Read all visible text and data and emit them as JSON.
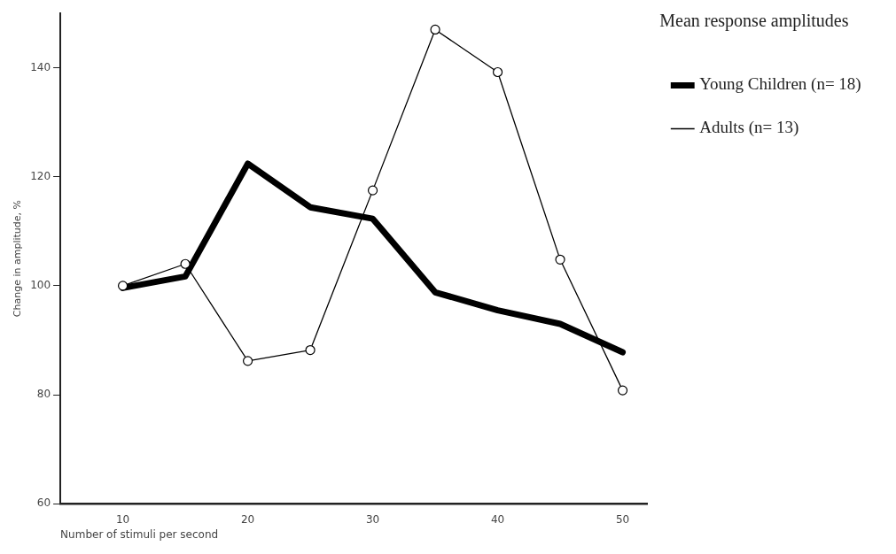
{
  "chart_data": {
    "type": "line",
    "xlabel": "Number of stimuli per second",
    "ylabel": "Change in amplitude, %",
    "legend_title": "Mean response amplitudes",
    "legend": "top right",
    "x": [
      10,
      15,
      20,
      25,
      30,
      35,
      40,
      45,
      50
    ],
    "series": [
      {
        "name": "Young Children (n= 18)",
        "color": "#000000",
        "marker": "none",
        "values": [
          99.6,
          101.7,
          122.4,
          114.4,
          112.3,
          98.8,
          95.5,
          93,
          87.8
        ]
      },
      {
        "name": "Adults (n= 13)",
        "color": "#000000",
        "marker": "circle",
        "values": [
          100,
          104,
          86.2,
          88.2,
          117.5,
          147,
          139.2,
          104.8,
          80.8
        ]
      }
    ],
    "xlim": [
      5,
      52
    ],
    "xticks": [
      10,
      20,
      30,
      40,
      50
    ],
    "ylim": [
      60,
      150
    ],
    "yticks": [
      60,
      80,
      100,
      120,
      140
    ],
    "grid": false,
    "line_style": "solid"
  }
}
